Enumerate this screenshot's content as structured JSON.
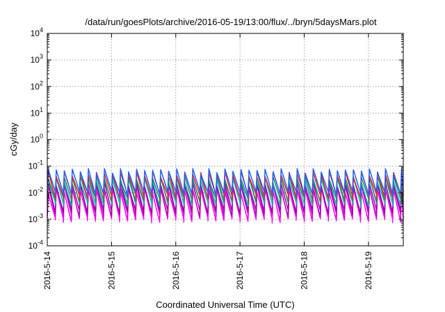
{
  "chart_data": {
    "type": "line",
    "title": "/data/run/goesPlots/archive/2016-05-19/13:00/flux/../bryn/5daysMars.plot",
    "xlabel": "Coordinated Universal Time (UTC)",
    "ylabel": "cGy/day",
    "y_scale": "log",
    "ylim": [
      0.0001,
      10000
    ],
    "xlim": [
      "2016-05-14 00:00",
      "2016-05-19 13:00"
    ],
    "x_ticks": [
      "2016-5-14",
      "2016-5-15",
      "2016-5-16",
      "2016-5-17",
      "2016-5-18",
      "2016-5-19"
    ],
    "y_ticks": [
      {
        "base": "10",
        "exp": "-4",
        "value": 0.0001
      },
      {
        "base": "10",
        "exp": "-3",
        "value": 0.001
      },
      {
        "base": "10",
        "exp": "-2",
        "value": 0.01
      },
      {
        "base": "10",
        "exp": "-1",
        "value": 0.1
      },
      {
        "base": "10",
        "exp": "0",
        "value": 1
      },
      {
        "base": "10",
        "exp": "1",
        "value": 10
      },
      {
        "base": "10",
        "exp": "2",
        "value": 100
      },
      {
        "base": "10",
        "exp": "3",
        "value": 1000
      },
      {
        "base": "10",
        "exp": "4",
        "value": 10000
      }
    ],
    "grid": true,
    "legend": "none",
    "sawtooth_period_hours": 3,
    "series": [
      {
        "color": "#ff00ff",
        "peak": 0.012,
        "trough": 0.0009
      },
      {
        "color": "#cc00cc",
        "peak": 0.016,
        "trough": 0.0013
      },
      {
        "color": "#a000a0",
        "peak": 0.02,
        "trough": 0.0018
      },
      {
        "color": "#00bfbf",
        "peak": 0.03,
        "trough": 0.0035
      },
      {
        "color": "#2e8b57",
        "peak": 0.035,
        "trough": 0.005
      },
      {
        "color": "#ff2020",
        "peak": 0.05,
        "trough": 0.007
      },
      {
        "color": "#2060ff",
        "peak": 0.065,
        "trough": 0.009
      }
    ]
  }
}
